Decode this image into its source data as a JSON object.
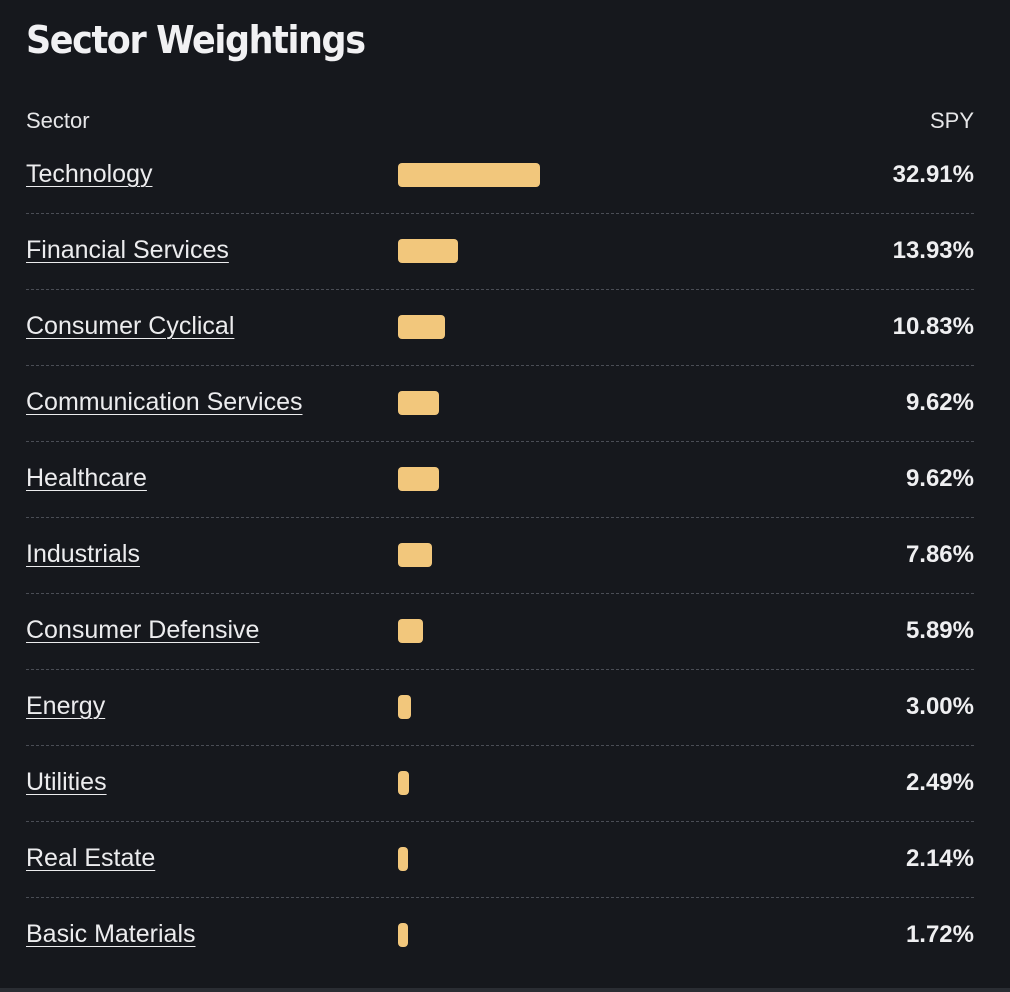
{
  "title": "Sector Weightings",
  "table": {
    "col_sector": "Sector",
    "col_fund": "SPY",
    "rows": [
      {
        "sector": "Technology",
        "pct_label": "32.91%",
        "value": 32.91
      },
      {
        "sector": "Financial Services",
        "pct_label": "13.93%",
        "value": 13.93
      },
      {
        "sector": "Consumer Cyclical",
        "pct_label": "10.83%",
        "value": 10.83
      },
      {
        "sector": "Communication Services",
        "pct_label": "9.62%",
        "value": 9.62
      },
      {
        "sector": "Healthcare",
        "pct_label": "9.62%",
        "value": 9.62
      },
      {
        "sector": "Industrials",
        "pct_label": "7.86%",
        "value": 7.86
      },
      {
        "sector": "Consumer Defensive",
        "pct_label": "5.89%",
        "value": 5.89
      },
      {
        "sector": "Energy",
        "pct_label": "3.00%",
        "value": 3.0
      },
      {
        "sector": "Utilities",
        "pct_label": "2.49%",
        "value": 2.49
      },
      {
        "sector": "Real Estate",
        "pct_label": "2.14%",
        "value": 2.14
      },
      {
        "sector": "Basic Materials",
        "pct_label": "1.72%",
        "value": 1.72
      }
    ]
  },
  "colors": {
    "background": "#16181d",
    "bar": "#f2c77c",
    "divider": "#4a4d55"
  }
}
